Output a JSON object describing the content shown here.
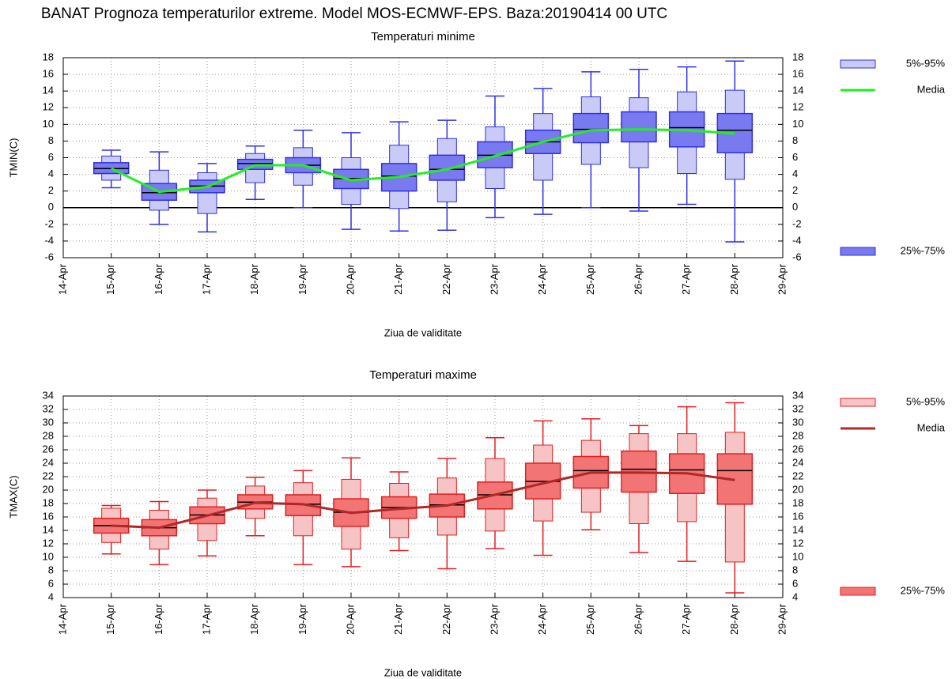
{
  "title": "BANAT  Prognoza temperaturilor extreme.  Model MOS-ECMWF-EPS. Baza:20190414 00 UTC",
  "chart_data": [
    {
      "type": "box",
      "title": "Temperaturi minime",
      "title_color": "#2020e0",
      "xlabel": "Ziua de validitate",
      "ylabel": "TMIN(C)",
      "categories": [
        "14-Apr",
        "15-Apr",
        "16-Apr",
        "17-Apr",
        "18-Apr",
        "19-Apr",
        "20-Apr",
        "21-Apr",
        "22-Apr",
        "23-Apr",
        "24-Apr",
        "25-Apr",
        "26-Apr",
        "27-Apr",
        "28-Apr",
        "29-Apr"
      ],
      "ylim": [
        -6,
        18
      ],
      "yticks": [
        -6,
        -4,
        -2,
        0,
        2,
        4,
        6,
        8,
        10,
        12,
        14,
        16,
        18
      ],
      "grid": true,
      "zero_line": true,
      "edge": "#3030e0",
      "min": [
        null,
        2.4,
        -2.0,
        -2.9,
        1.0,
        0.0,
        -2.6,
        -2.8,
        -2.7,
        -1.2,
        -0.8,
        0.0,
        -0.4,
        0.4,
        -4.1,
        null
      ],
      "max": [
        null,
        6.9,
        6.7,
        5.3,
        7.4,
        9.3,
        9.0,
        10.3,
        10.5,
        13.4,
        14.3,
        16.3,
        16.6,
        16.9,
        17.6,
        null
      ],
      "median": [
        null,
        4.7,
        1.8,
        2.6,
        5.3,
        5.1,
        3.5,
        3.8,
        4.6,
        6.3,
        7.9,
        9.4,
        9.4,
        9.6,
        9.3,
        null
      ],
      "series": [
        {
          "name": "5%-95%",
          "color": "#cacaf6",
          "low": [
            null,
            3.3,
            -0.3,
            -0.7,
            3.0,
            2.7,
            0.4,
            -0.1,
            0.7,
            2.3,
            3.3,
            5.2,
            4.8,
            4.1,
            3.4,
            null
          ],
          "high": [
            null,
            6.2,
            4.5,
            4.2,
            6.5,
            7.2,
            6.0,
            7.5,
            8.3,
            9.7,
            11.3,
            13.3,
            13.2,
            13.9,
            14.1,
            null
          ]
        },
        {
          "name": "25%-75%",
          "color": "#7a7af0",
          "low": [
            null,
            4.1,
            0.9,
            1.8,
            4.6,
            4.2,
            2.3,
            2.0,
            3.3,
            4.8,
            6.5,
            7.8,
            7.9,
            7.3,
            6.6,
            null
          ],
          "high": [
            null,
            5.4,
            2.9,
            3.3,
            5.8,
            6.0,
            4.6,
            5.3,
            6.3,
            7.9,
            9.3,
            11.3,
            11.5,
            11.5,
            11.3,
            null
          ]
        },
        {
          "name": "Media",
          "color": "#22ee22",
          "values": [
            null,
            4.7,
            1.9,
            2.5,
            5.1,
            5.1,
            3.3,
            3.7,
            4.6,
            6.2,
            7.9,
            9.3,
            9.4,
            9.3,
            8.9,
            null
          ]
        }
      ]
    },
    {
      "type": "box",
      "title": "Temperaturi maxime",
      "title_color": "#e02020",
      "xlabel": "Ziua de validitate",
      "ylabel": "TMAX(C)",
      "categories": [
        "14-Apr",
        "15-Apr",
        "16-Apr",
        "17-Apr",
        "18-Apr",
        "19-Apr",
        "20-Apr",
        "21-Apr",
        "22-Apr",
        "23-Apr",
        "24-Apr",
        "25-Apr",
        "26-Apr",
        "27-Apr",
        "28-Apr",
        "29-Apr"
      ],
      "ylim": [
        4,
        34
      ],
      "yticks": [
        4,
        6,
        8,
        10,
        12,
        14,
        16,
        18,
        20,
        22,
        24,
        26,
        28,
        30,
        32,
        34
      ],
      "grid": true,
      "zero_line": false,
      "edge": "#e02020",
      "min": [
        null,
        10.5,
        8.9,
        10.2,
        13.2,
        8.9,
        8.6,
        11.0,
        8.3,
        11.3,
        10.3,
        14.1,
        10.7,
        9.4,
        4.7,
        null
      ],
      "max": [
        null,
        17.7,
        18.3,
        20.0,
        21.9,
        22.9,
        24.8,
        22.7,
        24.7,
        27.8,
        30.3,
        30.6,
        29.6,
        32.4,
        33.0,
        null
      ],
      "median": [
        null,
        14.7,
        14.4,
        16.3,
        18.2,
        17.9,
        16.7,
        17.4,
        17.8,
        19.3,
        21.3,
        22.9,
        23.1,
        23.0,
        22.9,
        null
      ],
      "series": [
        {
          "name": "5%-95%",
          "color": "#f6c4c4",
          "low": [
            null,
            12.2,
            11.2,
            12.5,
            15.8,
            13.2,
            11.2,
            12.9,
            13.3,
            13.9,
            15.4,
            16.7,
            15.0,
            15.3,
            9.3,
            null
          ],
          "high": [
            null,
            17.3,
            17.0,
            18.8,
            20.6,
            21.1,
            21.6,
            21.0,
            21.8,
            24.7,
            26.7,
            27.4,
            28.4,
            28.4,
            28.6,
            null
          ]
        },
        {
          "name": "25%-75%",
          "color": "#f27474",
          "low": [
            null,
            13.6,
            13.2,
            15.0,
            17.2,
            16.2,
            14.6,
            15.8,
            16.0,
            17.2,
            18.7,
            20.3,
            19.7,
            19.5,
            17.9,
            null
          ],
          "high": [
            null,
            15.8,
            15.6,
            17.5,
            19.3,
            19.3,
            18.7,
            19.0,
            19.4,
            21.2,
            24.0,
            25.0,
            25.8,
            25.4,
            25.4,
            null
          ]
        },
        {
          "name": "Media",
          "color": "#b02828",
          "values": [
            null,
            14.7,
            14.4,
            16.2,
            18.1,
            17.9,
            16.6,
            17.2,
            17.7,
            19.3,
            21.0,
            22.6,
            22.6,
            22.5,
            21.5,
            null
          ]
        }
      ]
    }
  ]
}
